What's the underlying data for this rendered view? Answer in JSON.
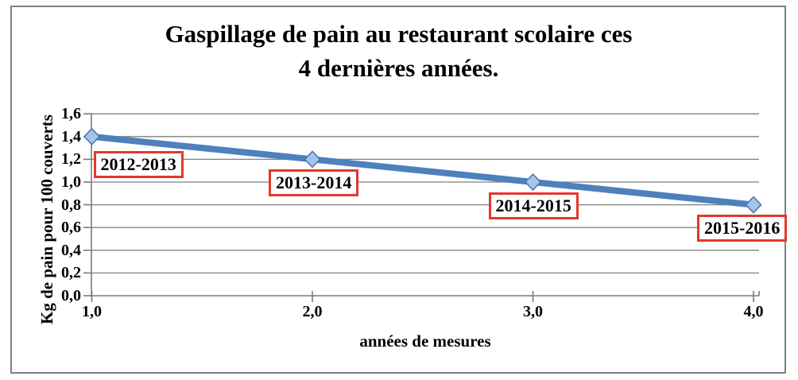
{
  "chart_data": {
    "type": "line",
    "title": "Gaspillage de pain au restaurant scolaire ces 4 dernières années.",
    "title_lines": [
      "Gaspillage de pain au restaurant scolaire ces",
      "4 dernières années."
    ],
    "xlabel": "années de mesures",
    "ylabel": "Kg de pain pour 100 couverts",
    "x": [
      1.0,
      2.0,
      3.0,
      4.0
    ],
    "y": [
      1.4,
      1.2,
      1.0,
      0.8
    ],
    "series": [
      {
        "name": "Kg de pain pour 100 couverts",
        "values": [
          1.4,
          1.2,
          1.0,
          0.8
        ]
      }
    ],
    "xticks": [
      "1,0",
      "2,0",
      "3,0",
      "4,0"
    ],
    "yticks": [
      "0,0",
      "0,2",
      "0,4",
      "0,6",
      "0,8",
      "1,0",
      "1,2",
      "1,4",
      "1,6"
    ],
    "xlim": [
      1.0,
      4.0
    ],
    "ylim": [
      0.0,
      1.6
    ],
    "y_step": 0.2,
    "grid": true,
    "legend": "none",
    "marker": "diamond",
    "annotations": [
      {
        "label": "2012-2013",
        "x": 1.0,
        "y": 1.4
      },
      {
        "label": "2013-2014",
        "x": 2.0,
        "y": 1.2
      },
      {
        "label": "2014-2015",
        "x": 3.0,
        "y": 1.0
      },
      {
        "label": "2015-2016",
        "x": 4.0,
        "y": 0.8
      }
    ],
    "colors": {
      "line": "#4e80bc",
      "marker_fill": "#a6c4e7",
      "marker_stroke": "#4b7ab0",
      "grid": "#808080",
      "axis": "#7a7a7a",
      "annotation_border": "#e2392c",
      "frame_border": "#808080",
      "text": "#000000"
    }
  }
}
